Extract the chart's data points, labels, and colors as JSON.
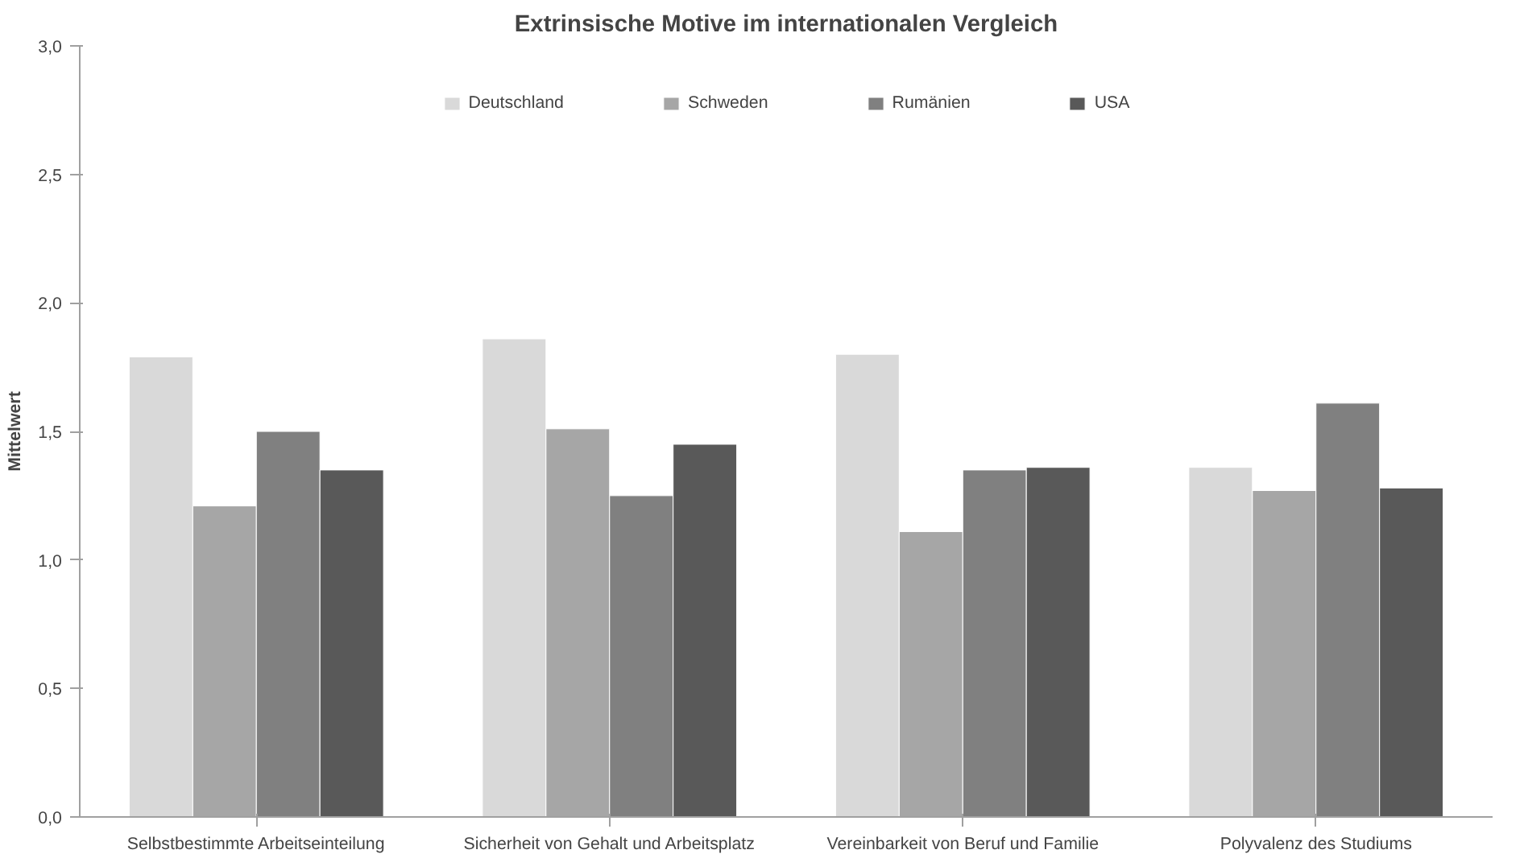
{
  "chart_data": {
    "type": "bar",
    "title": "Extrinsische Motive im internationalen Vergleich",
    "ylabel": "Mittelwert",
    "categories": [
      "Selbstbestimmte Arbeitseinteilung",
      "Sicherheit von Gehalt und Arbeitsplatz",
      "Vereinbarkeit von Beruf und Familie",
      "Polyvalenz des Studiums"
    ],
    "series": [
      {
        "name": "Deutschland",
        "color": "#d9d9d9",
        "values": [
          1.79,
          1.86,
          1.8,
          1.36
        ]
      },
      {
        "name": "Schweden",
        "color": "#a6a6a6",
        "values": [
          1.21,
          1.51,
          1.11,
          1.27
        ]
      },
      {
        "name": "Rumänien",
        "color": "#808080",
        "values": [
          1.5,
          1.25,
          1.35,
          1.61
        ]
      },
      {
        "name": "USA",
        "color": "#595959",
        "values": [
          1.35,
          1.45,
          1.36,
          1.28
        ]
      }
    ],
    "ylim": [
      0,
      3
    ],
    "yticks": [
      {
        "value": 0,
        "label": "0,0"
      },
      {
        "value": 0.5,
        "label": "0,5"
      },
      {
        "value": 1,
        "label": "1,0"
      },
      {
        "value": 1.5,
        "label": "1,5"
      },
      {
        "value": 2,
        "label": "2,0"
      },
      {
        "value": 2.5,
        "label": "2,5"
      },
      {
        "value": 3,
        "label": "3,0"
      }
    ],
    "grid": false,
    "legend": "top"
  }
}
